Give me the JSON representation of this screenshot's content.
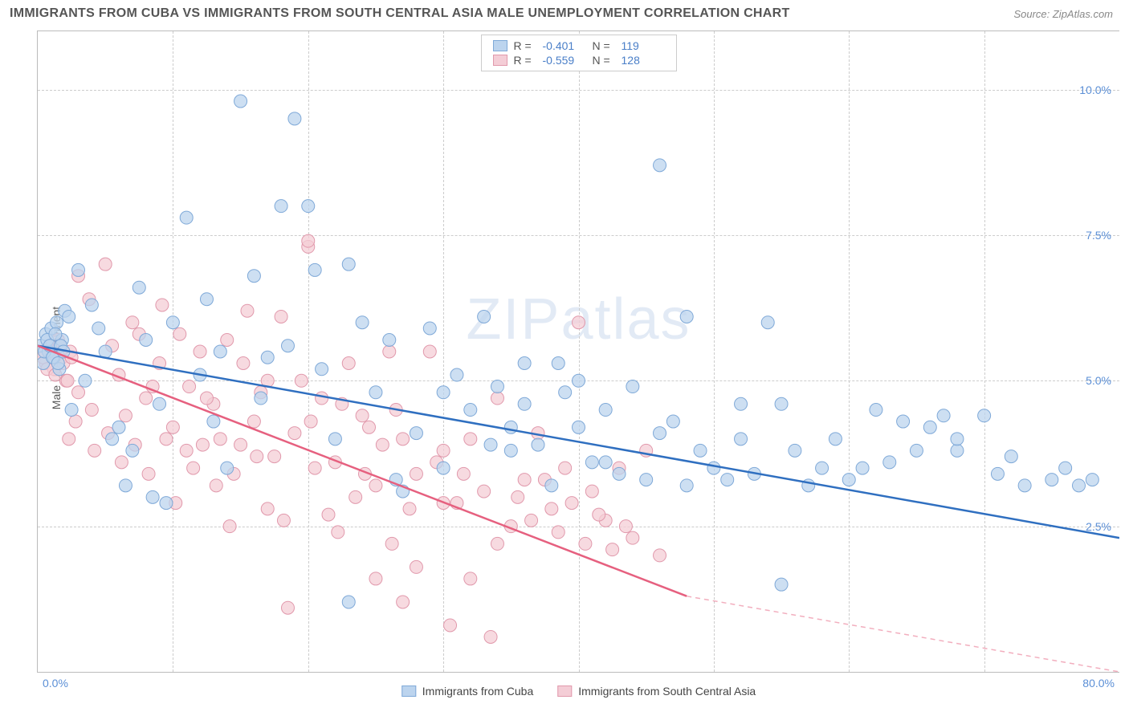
{
  "title": "IMMIGRANTS FROM CUBA VS IMMIGRANTS FROM SOUTH CENTRAL ASIA MALE UNEMPLOYMENT CORRELATION CHART",
  "source_label": "Source: ZipAtlas.com",
  "watermark": "ZIPatlas",
  "y_axis": {
    "label": "Male Unemployment"
  },
  "x_range": [
    0,
    80
  ],
  "y_range": [
    0,
    11
  ],
  "y_ticks": [
    {
      "value": 2.5,
      "label": "2.5%"
    },
    {
      "value": 5.0,
      "label": "5.0%"
    },
    {
      "value": 7.5,
      "label": "7.5%"
    },
    {
      "value": 10.0,
      "label": "10.0%"
    }
  ],
  "x_ticks_major": [
    10,
    20,
    30,
    40,
    50,
    60,
    70
  ],
  "x_start_label": "0.0%",
  "x_end_label": "80.0%",
  "series": [
    {
      "name": "Immigrants from Cuba",
      "r": -0.401,
      "n": 119,
      "color_fill": "#bcd4ee",
      "color_stroke": "#7fa9d8",
      "line_color": "#2f6fc0",
      "line": {
        "x1": 0,
        "y1": 5.6,
        "x2": 80,
        "y2": 2.3
      },
      "points": [
        [
          0.2,
          5.6
        ],
        [
          0.4,
          5.3
        ],
        [
          0.6,
          5.8
        ],
        [
          0.8,
          5.5
        ],
        [
          1.0,
          5.9
        ],
        [
          1.2,
          5.4
        ],
        [
          1.4,
          6.0
        ],
        [
          1.6,
          5.2
        ],
        [
          1.8,
          5.7
        ],
        [
          0.5,
          5.5
        ],
        [
          0.7,
          5.7
        ],
        [
          0.9,
          5.6
        ],
        [
          1.1,
          5.4
        ],
        [
          1.3,
          5.8
        ],
        [
          1.5,
          5.3
        ],
        [
          1.7,
          5.6
        ],
        [
          1.9,
          5.5
        ],
        [
          2,
          6.2
        ],
        [
          2.3,
          6.1
        ],
        [
          3,
          6.9
        ],
        [
          4,
          6.3
        ],
        [
          5,
          5.5
        ],
        [
          6,
          4.2
        ],
        [
          7,
          3.8
        ],
        [
          3.5,
          5.0
        ],
        [
          8,
          5.7
        ],
        [
          9,
          4.6
        ],
        [
          10,
          6.0
        ],
        [
          11,
          7.8
        ],
        [
          12,
          5.1
        ],
        [
          13,
          4.3
        ],
        [
          14,
          3.5
        ],
        [
          9.5,
          2.9
        ],
        [
          15,
          9.8
        ],
        [
          16,
          6.8
        ],
        [
          17,
          5.4
        ],
        [
          18,
          8.0
        ],
        [
          19,
          9.5
        ],
        [
          4.5,
          5.9
        ],
        [
          5.5,
          4.0
        ],
        [
          20,
          8.0
        ],
        [
          21,
          5.2
        ],
        [
          22,
          4.0
        ],
        [
          23,
          7.0
        ],
        [
          24,
          6.0
        ],
        [
          25,
          4.8
        ],
        [
          12.5,
          6.4
        ],
        [
          26,
          5.7
        ],
        [
          27,
          3.1
        ],
        [
          28,
          4.1
        ],
        [
          29,
          5.9
        ],
        [
          30,
          3.5
        ],
        [
          6.5,
          3.2
        ],
        [
          7.5,
          6.6
        ],
        [
          31,
          5.1
        ],
        [
          32,
          4.5
        ],
        [
          23,
          1.2
        ],
        [
          33,
          6.1
        ],
        [
          34,
          4.9
        ],
        [
          18.5,
          5.6
        ],
        [
          35,
          3.8
        ],
        [
          36,
          4.6
        ],
        [
          37,
          3.9
        ],
        [
          38,
          3.2
        ],
        [
          39,
          4.8
        ],
        [
          20.5,
          6.9
        ],
        [
          40,
          4.2
        ],
        [
          41,
          3.6
        ],
        [
          42,
          4.5
        ],
        [
          43,
          3.4
        ],
        [
          44,
          4.9
        ],
        [
          45,
          3.3
        ],
        [
          46,
          8.7
        ],
        [
          47,
          4.3
        ],
        [
          48,
          6.1
        ],
        [
          49,
          3.8
        ],
        [
          50,
          3.5
        ],
        [
          51,
          3.3
        ],
        [
          52,
          4.6
        ],
        [
          53,
          3.4
        ],
        [
          54,
          6.0
        ],
        [
          55,
          4.6
        ],
        [
          56,
          3.8
        ],
        [
          57,
          3.2
        ],
        [
          58,
          3.5
        ],
        [
          59,
          4.0
        ],
        [
          60,
          3.3
        ],
        [
          61,
          3.5
        ],
        [
          62,
          4.5
        ],
        [
          63,
          3.6
        ],
        [
          64,
          4.3
        ],
        [
          65,
          3.8
        ],
        [
          66,
          4.2
        ],
        [
          67,
          4.4
        ],
        [
          68,
          3.8
        ],
        [
          70,
          4.4
        ],
        [
          71,
          3.4
        ],
        [
          72,
          3.7
        ],
        [
          73,
          3.2
        ],
        [
          75,
          3.3
        ],
        [
          76,
          3.5
        ],
        [
          77,
          3.2
        ],
        [
          78,
          3.3
        ],
        [
          52,
          4.0
        ],
        [
          46,
          4.1
        ],
        [
          40,
          5.0
        ],
        [
          68,
          4.0
        ],
        [
          55,
          1.5
        ],
        [
          35,
          4.2
        ],
        [
          42,
          3.6
        ],
        [
          48,
          3.2
        ],
        [
          30,
          4.8
        ],
        [
          36,
          5.3
        ],
        [
          8.5,
          3.0
        ],
        [
          13.5,
          5.5
        ],
        [
          2.5,
          4.5
        ],
        [
          16.5,
          4.7
        ],
        [
          26.5,
          3.3
        ],
        [
          33.5,
          3.9
        ],
        [
          38.5,
          5.3
        ]
      ]
    },
    {
      "name": "Immigrants from South Central Asia",
      "r": -0.559,
      "n": 128,
      "color_fill": "#f4cdd6",
      "color_stroke": "#e199ac",
      "line_color": "#e6607f",
      "line": {
        "x1": 0,
        "y1": 5.6,
        "x2": 48,
        "y2": 1.3
      },
      "line_extrap": {
        "x1": 48,
        "y1": 1.3,
        "x2": 80,
        "y2": -1.5
      },
      "points": [
        [
          0.3,
          5.5
        ],
        [
          0.6,
          5.3
        ],
        [
          0.9,
          5.6
        ],
        [
          1.2,
          5.2
        ],
        [
          1.5,
          5.7
        ],
        [
          1.8,
          5.4
        ],
        [
          2.1,
          5.0
        ],
        [
          2.4,
          5.5
        ],
        [
          0.4,
          5.4
        ],
        [
          0.7,
          5.2
        ],
        [
          1.0,
          5.5
        ],
        [
          1.3,
          5.1
        ],
        [
          1.6,
          5.6
        ],
        [
          1.9,
          5.3
        ],
        [
          2.2,
          5.0
        ],
        [
          2.5,
          5.4
        ],
        [
          3,
          6.8
        ],
        [
          3,
          4.8
        ],
        [
          4,
          4.5
        ],
        [
          5,
          7.0
        ],
        [
          6,
          5.1
        ],
        [
          7,
          6.0
        ],
        [
          2.8,
          4.3
        ],
        [
          8,
          4.7
        ],
        [
          9,
          5.3
        ],
        [
          10,
          4.2
        ],
        [
          11,
          3.8
        ],
        [
          12,
          5.5
        ],
        [
          5.5,
          5.6
        ],
        [
          6.5,
          4.4
        ],
        [
          13,
          4.6
        ],
        [
          14,
          5.7
        ],
        [
          15,
          3.9
        ],
        [
          16,
          4.3
        ],
        [
          17,
          5.0
        ],
        [
          4.2,
          3.8
        ],
        [
          18,
          6.1
        ],
        [
          19,
          4.1
        ],
        [
          20,
          7.3
        ],
        [
          20,
          7.4
        ],
        [
          21,
          4.7
        ],
        [
          9.5,
          4.0
        ],
        [
          22,
          3.6
        ],
        [
          23,
          5.3
        ],
        [
          24,
          4.4
        ],
        [
          25,
          3.2
        ],
        [
          26,
          5.5
        ],
        [
          11.5,
          3.5
        ],
        [
          27,
          4.0
        ],
        [
          28,
          3.4
        ],
        [
          29,
          5.5
        ],
        [
          30,
          3.8
        ],
        [
          31,
          2.9
        ],
        [
          15.5,
          6.2
        ],
        [
          32,
          4.0
        ],
        [
          33,
          3.1
        ],
        [
          34,
          4.7
        ],
        [
          35,
          2.5
        ],
        [
          36,
          3.3
        ],
        [
          18.5,
          1.1
        ],
        [
          37,
          4.1
        ],
        [
          38,
          2.8
        ],
        [
          39,
          3.5
        ],
        [
          40,
          6.0
        ],
        [
          41,
          3.1
        ],
        [
          21.5,
          2.7
        ],
        [
          42,
          2.6
        ],
        [
          43,
          3.5
        ],
        [
          44,
          2.3
        ],
        [
          45,
          3.8
        ],
        [
          46,
          2.0
        ],
        [
          24.5,
          4.2
        ],
        [
          32,
          1.6
        ],
        [
          34,
          2.2
        ],
        [
          28,
          1.8
        ],
        [
          30,
          2.9
        ],
        [
          33.5,
          0.6
        ],
        [
          17.5,
          3.7
        ],
        [
          12.5,
          4.7
        ],
        [
          14.5,
          3.4
        ],
        [
          16.5,
          4.8
        ],
        [
          13.5,
          4.0
        ],
        [
          19.5,
          5.0
        ],
        [
          20.5,
          3.5
        ],
        [
          22.5,
          4.6
        ],
        [
          7.5,
          5.8
        ],
        [
          25.5,
          3.9
        ],
        [
          26.5,
          4.5
        ],
        [
          27.5,
          2.8
        ],
        [
          8.5,
          4.9
        ],
        [
          35.5,
          3.0
        ],
        [
          36.5,
          2.6
        ],
        [
          37.5,
          3.3
        ],
        [
          6.2,
          3.6
        ],
        [
          38.5,
          2.4
        ],
        [
          39.5,
          2.9
        ],
        [
          40.5,
          2.2
        ],
        [
          10.5,
          5.8
        ],
        [
          41.5,
          2.7
        ],
        [
          42.5,
          2.1
        ],
        [
          43.5,
          2.5
        ],
        [
          3.8,
          6.4
        ],
        [
          29.5,
          3.6
        ],
        [
          31.5,
          3.4
        ],
        [
          23.5,
          3.0
        ],
        [
          2.3,
          4.0
        ],
        [
          30.5,
          0.8
        ],
        [
          25,
          1.6
        ],
        [
          27,
          1.2
        ],
        [
          17,
          2.8
        ],
        [
          5.2,
          4.1
        ],
        [
          7.2,
          3.9
        ],
        [
          9.2,
          6.3
        ],
        [
          11.2,
          4.9
        ],
        [
          13.2,
          3.2
        ],
        [
          15.2,
          5.3
        ],
        [
          8.2,
          3.4
        ],
        [
          10.2,
          2.9
        ],
        [
          12.2,
          3.9
        ],
        [
          14.2,
          2.5
        ],
        [
          16.2,
          3.7
        ],
        [
          18.2,
          2.6
        ],
        [
          20.2,
          4.3
        ],
        [
          22.2,
          2.4
        ],
        [
          24.2,
          3.4
        ],
        [
          26.2,
          2.2
        ]
      ]
    }
  ],
  "legend_bottom": [
    {
      "label": "Immigrants from Cuba",
      "fill": "#bcd4ee",
      "stroke": "#7fa9d8"
    },
    {
      "label": "Immigrants from South Central Asia",
      "fill": "#f4cdd6",
      "stroke": "#e199ac"
    }
  ],
  "marker_radius": 8,
  "line_width": 2.5,
  "background_color": "#ffffff",
  "grid_color": "#cccccc",
  "title_color": "#555555",
  "tick_label_color": "#5b8fd6"
}
